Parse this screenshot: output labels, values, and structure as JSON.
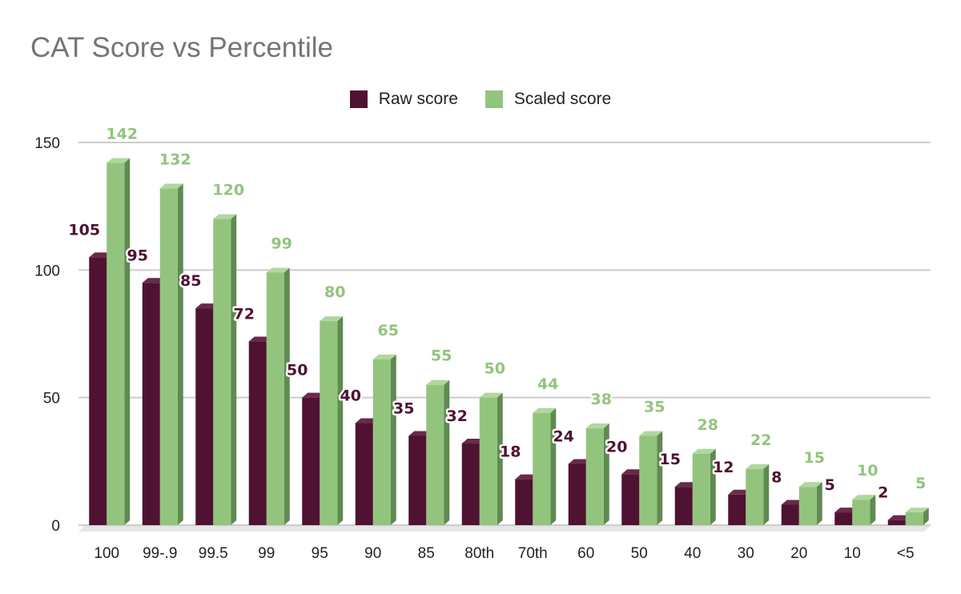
{
  "chart_data": {
    "type": "bar",
    "title": "CAT Score vs Percentile",
    "categories": [
      "100",
      "99-.9",
      "99.5",
      "99",
      "95",
      "90",
      "85",
      "80th",
      "70th",
      "60",
      "50",
      "40",
      "30",
      "20",
      "10",
      "<5"
    ],
    "series": [
      {
        "name": "Raw score",
        "color": "#4f1232",
        "values": [
          105,
          95,
          85,
          72,
          50,
          40,
          35,
          32,
          18,
          24,
          20,
          15,
          12,
          8,
          5,
          2
        ]
      },
      {
        "name": "Scaled score",
        "color": "#93c47d",
        "values": [
          142,
          132,
          120,
          99,
          80,
          65,
          55,
          50,
          44,
          38,
          35,
          28,
          22,
          15,
          10,
          5
        ]
      }
    ],
    "ylim": [
      0,
      150
    ],
    "yticks": [
      0,
      50,
      100,
      150
    ],
    "grid": true,
    "legend": "top",
    "style": "3d-column",
    "xlabel": "",
    "ylabel": ""
  }
}
